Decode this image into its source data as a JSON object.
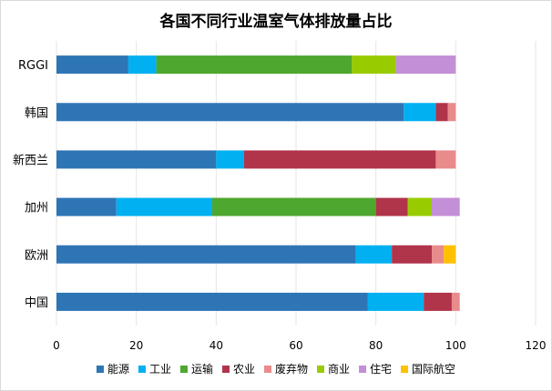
{
  "chart_data": {
    "type": "bar",
    "orientation": "horizontal",
    "stacked": true,
    "title": "各国不同行业温室气体排放量占比",
    "xlabel": "",
    "ylabel": "",
    "xlim": [
      0,
      120
    ],
    "xticks": [
      0,
      20,
      40,
      60,
      80,
      100,
      120
    ],
    "grid": true,
    "legend_position": "bottom",
    "categories": [
      "RGGI",
      "韩国",
      "新西兰",
      "加州",
      "欧洲",
      "中国"
    ],
    "series": [
      {
        "name": "能源",
        "color": "#2e75b6",
        "values": [
          18,
          87,
          40,
          15,
          75,
          78
        ]
      },
      {
        "name": "工业",
        "color": "#00b0f0",
        "values": [
          7,
          8,
          7,
          24,
          9,
          14
        ]
      },
      {
        "name": "运输",
        "color": "#4ea72e",
        "values": [
          49,
          0,
          0,
          41,
          0,
          0
        ]
      },
      {
        "name": "农业",
        "color": "#b0344a",
        "values": [
          0,
          3,
          48,
          8,
          10,
          7
        ]
      },
      {
        "name": "废弃物",
        "color": "#e98b8b",
        "values": [
          0,
          2,
          5,
          0,
          3,
          2
        ]
      },
      {
        "name": "商业",
        "color": "#99cc00",
        "values": [
          11,
          0,
          0,
          6,
          0,
          0
        ]
      },
      {
        "name": "住宅",
        "color": "#c38fd6",
        "values": [
          15,
          0,
          0,
          7,
          0,
          0
        ]
      },
      {
        "name": "国际航空",
        "color": "#ffc000",
        "values": [
          0,
          0,
          0,
          0,
          3,
          0
        ]
      }
    ]
  }
}
